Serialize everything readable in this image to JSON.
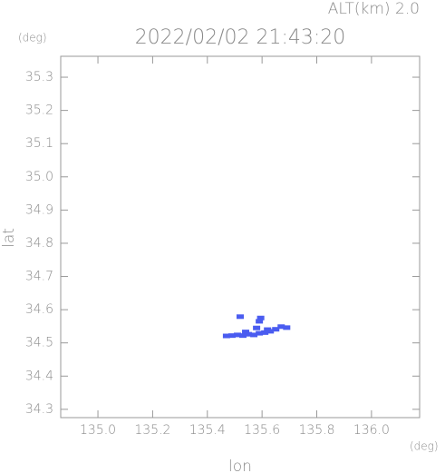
{
  "chart_data": {
    "type": "scatter",
    "title": "2022/02/02 21:43:20",
    "annotation": "ALT(km) 2.0",
    "y_unit": "(deg)",
    "x_unit": "(deg)",
    "xlabel": "lon",
    "ylabel": "lat",
    "color": "#4a5cf0",
    "xlim": [
      134.864,
      136.176
    ],
    "ylim": [
      34.275,
      35.363
    ],
    "xticks": [
      {
        "value": 135,
        "label": "135.0"
      },
      135.2,
      135.4,
      135.6,
      135.8,
      {
        "value": 136,
        "label": "136.0"
      }
    ],
    "yticks": [
      34.3,
      34.4,
      34.5,
      34.6,
      34.7,
      34.8,
      34.9,
      {
        "value": 35,
        "label": "35.0"
      },
      35.1,
      35.2,
      35.3
    ],
    "x": [
      135.47,
      135.49,
      135.51,
      135.53,
      135.55,
      135.57,
      135.59,
      135.61,
      135.63,
      135.65,
      135.67,
      135.69,
      135.52,
      135.59,
      135.595,
      135.58,
      135.54,
      135.62
    ],
    "y": [
      34.521,
      34.522,
      34.524,
      34.522,
      34.526,
      34.524,
      34.529,
      34.531,
      34.535,
      34.541,
      34.549,
      34.546,
      34.579,
      34.565,
      34.575,
      34.545,
      34.533,
      34.54
    ]
  }
}
